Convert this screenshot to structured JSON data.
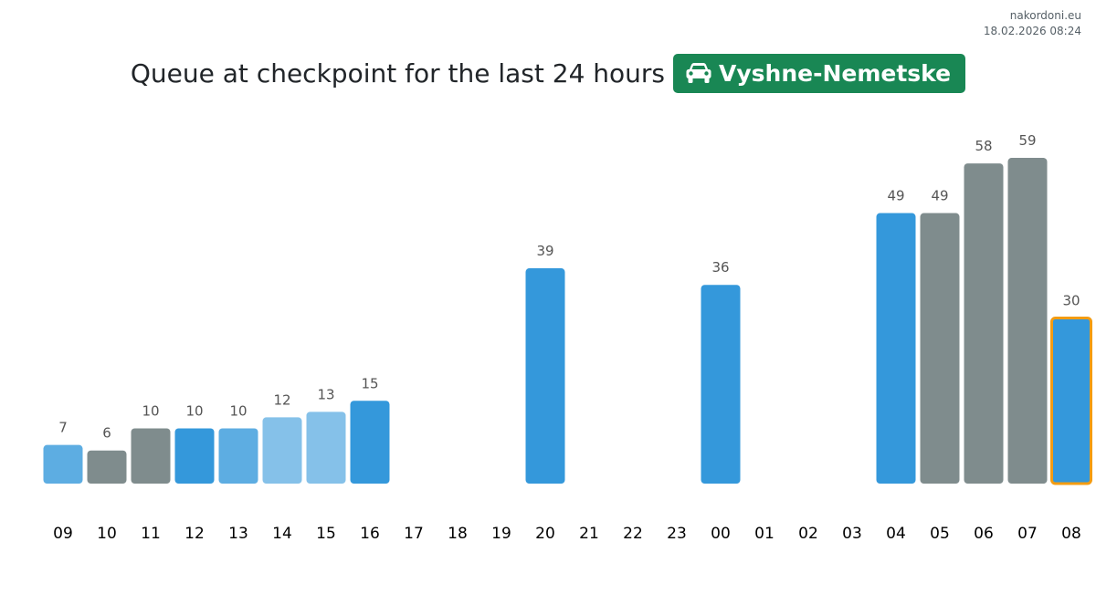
{
  "site": {
    "name": "nakordoni.eu",
    "timestamp": "18.02.2026 08:24"
  },
  "header": {
    "title": "Queue at checkpoint for the last 24 hours",
    "checkpoint_name": "Vyshne-Nemetske",
    "badge_icon": "car-icon",
    "badge_color": "#198754"
  },
  "colors": {
    "blue": "#3498db",
    "mid_blue": "#5dade2",
    "light_blue": "#85c1e9",
    "gray": "#7f8c8d",
    "highlight_border": "#f39c12"
  },
  "chart_data": {
    "type": "bar",
    "title": "",
    "xlabel": "",
    "ylabel": "",
    "ylim": [
      0,
      65
    ],
    "categories": [
      "09",
      "10",
      "11",
      "12",
      "13",
      "14",
      "15",
      "16",
      "17",
      "18",
      "19",
      "20",
      "21",
      "22",
      "23",
      "00",
      "01",
      "02",
      "03",
      "04",
      "05",
      "06",
      "07",
      "08"
    ],
    "values": [
      7,
      6,
      10,
      10,
      10,
      12,
      13,
      15,
      null,
      null,
      null,
      39,
      null,
      null,
      null,
      36,
      null,
      null,
      null,
      49,
      49,
      58,
      59,
      30
    ],
    "bar_colors": [
      "mid_blue",
      "gray",
      "gray",
      "blue",
      "mid_blue",
      "light_blue",
      "light_blue",
      "blue",
      null,
      null,
      null,
      "blue",
      null,
      null,
      null,
      "blue",
      null,
      null,
      null,
      "blue",
      "gray",
      "gray",
      "gray",
      "blue"
    ],
    "highlighted_category": "08",
    "grid": false,
    "legend": "none"
  }
}
